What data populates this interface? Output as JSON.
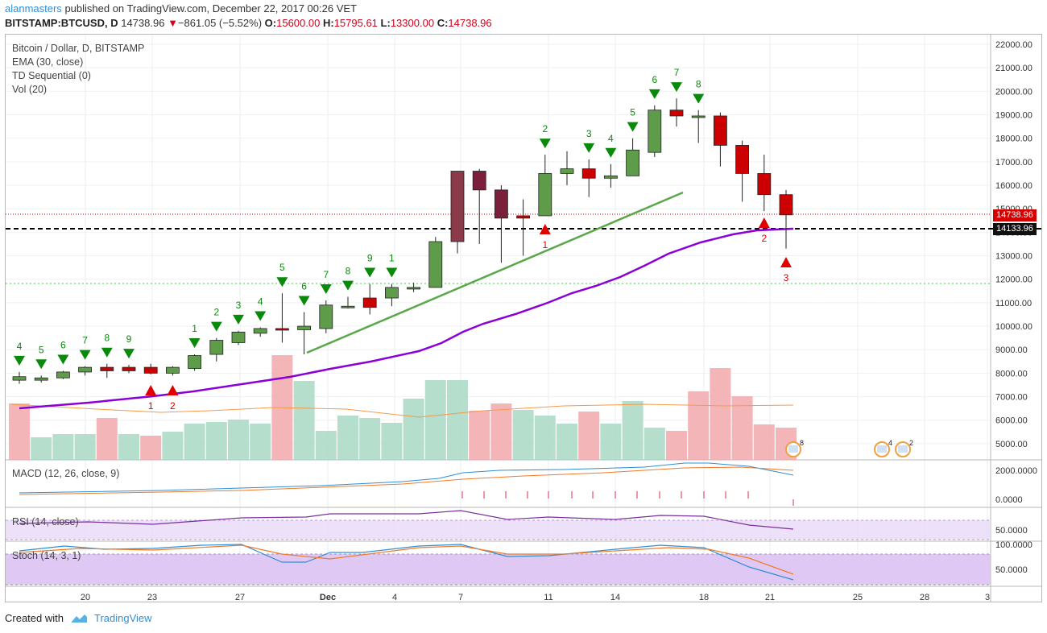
{
  "header": {
    "author": "alanmasters",
    "published_text": "published on TradingView.com, December 22, 2017 00:26 VET",
    "symbol": "BITSTAMP:BTCUSD, D",
    "price": "14738.96",
    "change": "−861.05 (−5.52%)",
    "o_label": "O:",
    "o_value": "15600.00",
    "h_label": "H:",
    "h_value": "15795.61",
    "l_label": "L:",
    "l_value": "13300.00",
    "c_label": "C:",
    "c_value": "14738.96"
  },
  "legend": {
    "line1": "Bitcoin / Dollar, D, BITSTAMP",
    "line2": "EMA (30, close)",
    "line3": "TD Sequential (0)",
    "line4": "Vol (20)",
    "macd": "MACD (12, 26, close, 9)",
    "rsi": "RSI (14, close)",
    "stoch": "Stoch (14, 3, 1)"
  },
  "price_tags": {
    "last": "14738.96",
    "line": "14133.96"
  },
  "footer": {
    "created_with": "Created with",
    "brand": "TradingView"
  },
  "colors": {
    "up_candle": "#5e9c4a",
    "down_candle": "#cc0000",
    "maroon_candle": "#7b1f3a",
    "ema": "#8b00d6",
    "vol_up": "#a8d8c4",
    "vol_down": "#f2a8ad",
    "td_green": "#0a8a0a",
    "td_red": "#e00000"
  },
  "chart_data": {
    "type": "candlestick",
    "y_axis_labels": [
      "22000.00",
      "21000.00",
      "20000.00",
      "19000.00",
      "18000.00",
      "17000.00",
      "16000.00",
      "15000.00",
      "14000.00",
      "13000.00",
      "12000.00",
      "11000.00",
      "10000.00",
      "9000.00",
      "8000.00",
      "7000.00",
      "6000.00",
      "5000.00"
    ],
    "x_axis_labels": [
      "20",
      "23",
      "27",
      "Dec",
      "4",
      "7",
      "11",
      "14",
      "18",
      "21",
      "25",
      "28",
      "3"
    ],
    "macd_axis_labels": [
      "2000.0000",
      "0.0000"
    ],
    "rsi_axis_labels": [
      "50.0000"
    ],
    "stoch_axis_labels": [
      "100.0000",
      "50.0000"
    ],
    "candles": [
      {
        "o": 7700,
        "h": 8050,
        "l": 7550,
        "c": 7850
      },
      {
        "o": 7700,
        "h": 7900,
        "l": 7600,
        "c": 7800
      },
      {
        "o": 7800,
        "h": 8100,
        "l": 7750,
        "c": 8050
      },
      {
        "o": 8050,
        "h": 8300,
        "l": 7900,
        "c": 8250
      },
      {
        "o": 8250,
        "h": 8400,
        "l": 7800,
        "c": 8100
      },
      {
        "o": 8250,
        "h": 8350,
        "l": 8000,
        "c": 8100
      },
      {
        "o": 8250,
        "h": 8400,
        "l": 7950,
        "c": 8000
      },
      {
        "o": 8000,
        "h": 8300,
        "l": 7900,
        "c": 8250
      },
      {
        "o": 8200,
        "h": 8800,
        "l": 8100,
        "c": 8750
      },
      {
        "o": 8800,
        "h": 9500,
        "l": 8500,
        "c": 9400
      },
      {
        "o": 9300,
        "h": 9800,
        "l": 9200,
        "c": 9750
      },
      {
        "o": 9700,
        "h": 9950,
        "l": 9550,
        "c": 9900
      },
      {
        "o": 9900,
        "h": 11400,
        "l": 9300,
        "c": 9850
      },
      {
        "o": 9850,
        "h": 10600,
        "l": 8800,
        "c": 10000
      },
      {
        "o": 9900,
        "h": 11100,
        "l": 9700,
        "c": 10900
      },
      {
        "o": 10850,
        "h": 11250,
        "l": 10750,
        "c": 10850
      },
      {
        "o": 11200,
        "h": 11800,
        "l": 10500,
        "c": 10800
      },
      {
        "o": 11200,
        "h": 11800,
        "l": 10850,
        "c": 11650
      },
      {
        "o": 11600,
        "h": 11850,
        "l": 11450,
        "c": 11650
      },
      {
        "o": 11650,
        "h": 13800,
        "l": 11650,
        "c": 13600
      },
      {
        "o": 16600,
        "h": 16600,
        "l": 13100,
        "c": 13600
      },
      {
        "o": 16600,
        "h": 16700,
        "l": 13500,
        "c": 15800
      },
      {
        "o": 15800,
        "h": 16000,
        "l": 12700,
        "c": 14600
      },
      {
        "o": 14700,
        "h": 15400,
        "l": 13000,
        "c": 14600
      },
      {
        "o": 14700,
        "h": 17300,
        "l": 14700,
        "c": 16500
      },
      {
        "o": 16500,
        "h": 17450,
        "l": 16000,
        "c": 16700
      },
      {
        "o": 16700,
        "h": 17100,
        "l": 15500,
        "c": 16300
      },
      {
        "o": 16300,
        "h": 16900,
        "l": 15900,
        "c": 16400
      },
      {
        "o": 16400,
        "h": 18000,
        "l": 16400,
        "c": 17500
      },
      {
        "o": 17400,
        "h": 19400,
        "l": 17200,
        "c": 19200
      },
      {
        "o": 19200,
        "h": 19700,
        "l": 18500,
        "c": 18950
      },
      {
        "o": 18950,
        "h": 19200,
        "l": 17800,
        "c": 18950
      },
      {
        "o": 18950,
        "h": 19100,
        "l": 16800,
        "c": 17700
      },
      {
        "o": 17700,
        "h": 17900,
        "l": 15300,
        "c": 16500
      },
      {
        "o": 16500,
        "h": 17300,
        "l": 14900,
        "c": 15600
      },
      {
        "o": 15600,
        "h": 15800,
        "l": 13300,
        "c": 14739
      }
    ],
    "volume_up_down": [
      "d",
      "u",
      "u",
      "u",
      "d",
      "u",
      "d",
      "u",
      "u",
      "u",
      "u",
      "u",
      "d",
      "u",
      "u",
      "u",
      "u",
      "u",
      "u",
      "u",
      "u",
      "d",
      "d",
      "u",
      "u",
      "u",
      "d",
      "u",
      "u",
      "u",
      "d",
      "d",
      "d",
      "d",
      "d",
      "d"
    ],
    "td_sequential_sell": [
      "4",
      "5",
      "6",
      "7",
      "8",
      "9",
      "1",
      "2",
      "3",
      "4",
      "5",
      "6",
      "7",
      "8",
      "9",
      "1",
      "2",
      "3",
      "4",
      "5",
      "6",
      "7",
      "8"
    ],
    "td_sequential_buy": [
      "1",
      "2",
      "1",
      "2",
      "3"
    ]
  }
}
